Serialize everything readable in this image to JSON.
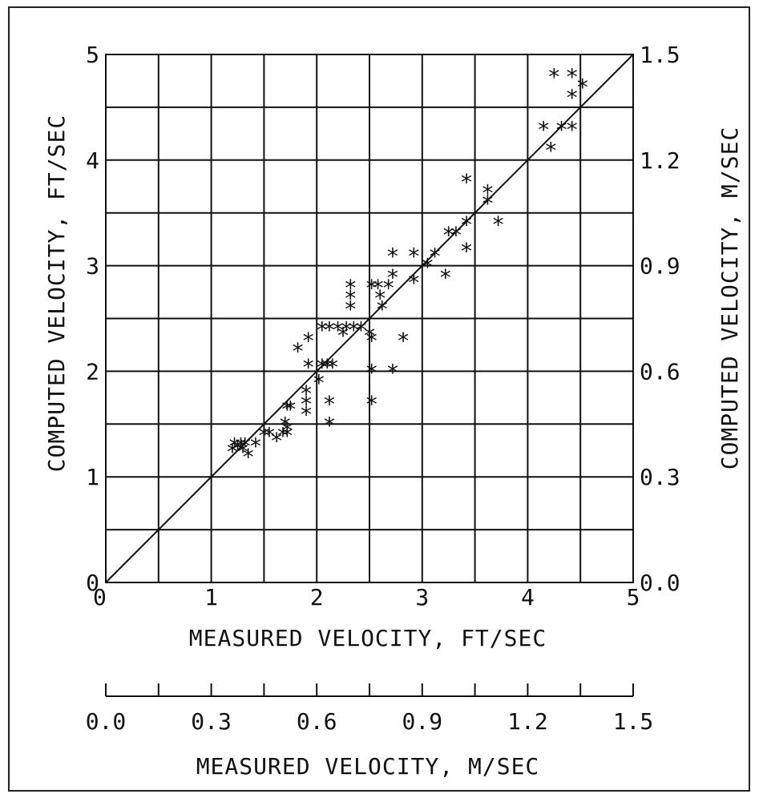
{
  "chart_data": {
    "type": "scatter",
    "xlabel": "MEASURED VELOCITY, FT/SEC",
    "ylabel": "COMPUTED VELOCITY, FT/SEC",
    "y2label": "COMPUTED VELOCITY, M/SEC",
    "x2label": "MEASURED VELOCITY, M/SEC",
    "xlim": [
      0,
      5
    ],
    "ylim": [
      0,
      5
    ],
    "grid": true,
    "x_ticks": [
      "0",
      "1",
      "2",
      "3",
      "4",
      "5"
    ],
    "y_ticks": [
      "0",
      "1",
      "2",
      "3",
      "4",
      "5"
    ],
    "y2_ticks": [
      "0.0",
      "0.3",
      "0.6",
      "0.9",
      "1.2",
      "1.5"
    ],
    "x2_ticks": [
      "0.0",
      "0.3",
      "0.6",
      "0.9",
      "1.2",
      "1.5"
    ],
    "reference_line": "line of equality",
    "marker": "*",
    "series": [
      {
        "points": [
          [
            1.2,
            1.25
          ],
          [
            1.22,
            1.3
          ],
          [
            1.25,
            1.27
          ],
          [
            1.28,
            1.3
          ],
          [
            1.3,
            1.25
          ],
          [
            1.32,
            1.3
          ],
          [
            1.35,
            1.2
          ],
          [
            1.42,
            1.3
          ],
          [
            1.5,
            1.4
          ],
          [
            1.55,
            1.4
          ],
          [
            1.62,
            1.35
          ],
          [
            1.68,
            1.4
          ],
          [
            1.72,
            1.4
          ],
          [
            1.72,
            1.45
          ],
          [
            1.7,
            1.5
          ],
          [
            1.72,
            1.65
          ],
          [
            1.75,
            1.65
          ],
          [
            1.82,
            2.2
          ],
          [
            1.92,
            2.3
          ],
          [
            1.92,
            2.05
          ],
          [
            1.9,
            1.8
          ],
          [
            1.9,
            1.7
          ],
          [
            1.9,
            1.6
          ],
          [
            2.02,
            1.9
          ],
          [
            2.05,
            2.05
          ],
          [
            2.1,
            2.05
          ],
          [
            2.15,
            2.05
          ],
          [
            2.12,
            1.7
          ],
          [
            2.12,
            1.5
          ],
          [
            2.05,
            2.4
          ],
          [
            2.12,
            2.4
          ],
          [
            2.2,
            2.4
          ],
          [
            2.25,
            2.35
          ],
          [
            2.28,
            2.4
          ],
          [
            2.32,
            2.6
          ],
          [
            2.32,
            2.7
          ],
          [
            2.32,
            2.8
          ],
          [
            2.35,
            2.4
          ],
          [
            2.42,
            2.4
          ],
          [
            2.5,
            2.35
          ],
          [
            2.52,
            2.3
          ],
          [
            2.52,
            2.0
          ],
          [
            2.52,
            1.7
          ],
          [
            2.52,
            2.8
          ],
          [
            2.58,
            2.8
          ],
          [
            2.6,
            2.7
          ],
          [
            2.62,
            2.6
          ],
          [
            2.68,
            2.8
          ],
          [
            2.72,
            2.9
          ],
          [
            2.72,
            3.1
          ],
          [
            2.72,
            2.0
          ],
          [
            2.82,
            2.3
          ],
          [
            2.92,
            3.1
          ],
          [
            2.92,
            2.85
          ],
          [
            3.05,
            3.0
          ],
          [
            3.12,
            3.1
          ],
          [
            3.22,
            2.9
          ],
          [
            3.25,
            3.3
          ],
          [
            3.32,
            3.3
          ],
          [
            3.42,
            3.8
          ],
          [
            3.42,
            3.4
          ],
          [
            3.42,
            3.15
          ],
          [
            3.62,
            3.7
          ],
          [
            3.62,
            3.6
          ],
          [
            3.72,
            3.4
          ],
          [
            4.15,
            4.3
          ],
          [
            4.22,
            4.1
          ],
          [
            4.25,
            4.8
          ],
          [
            4.32,
            4.3
          ],
          [
            4.42,
            4.8
          ],
          [
            4.42,
            4.6
          ],
          [
            4.42,
            4.3
          ],
          [
            4.52,
            4.7
          ]
        ]
      }
    ]
  }
}
